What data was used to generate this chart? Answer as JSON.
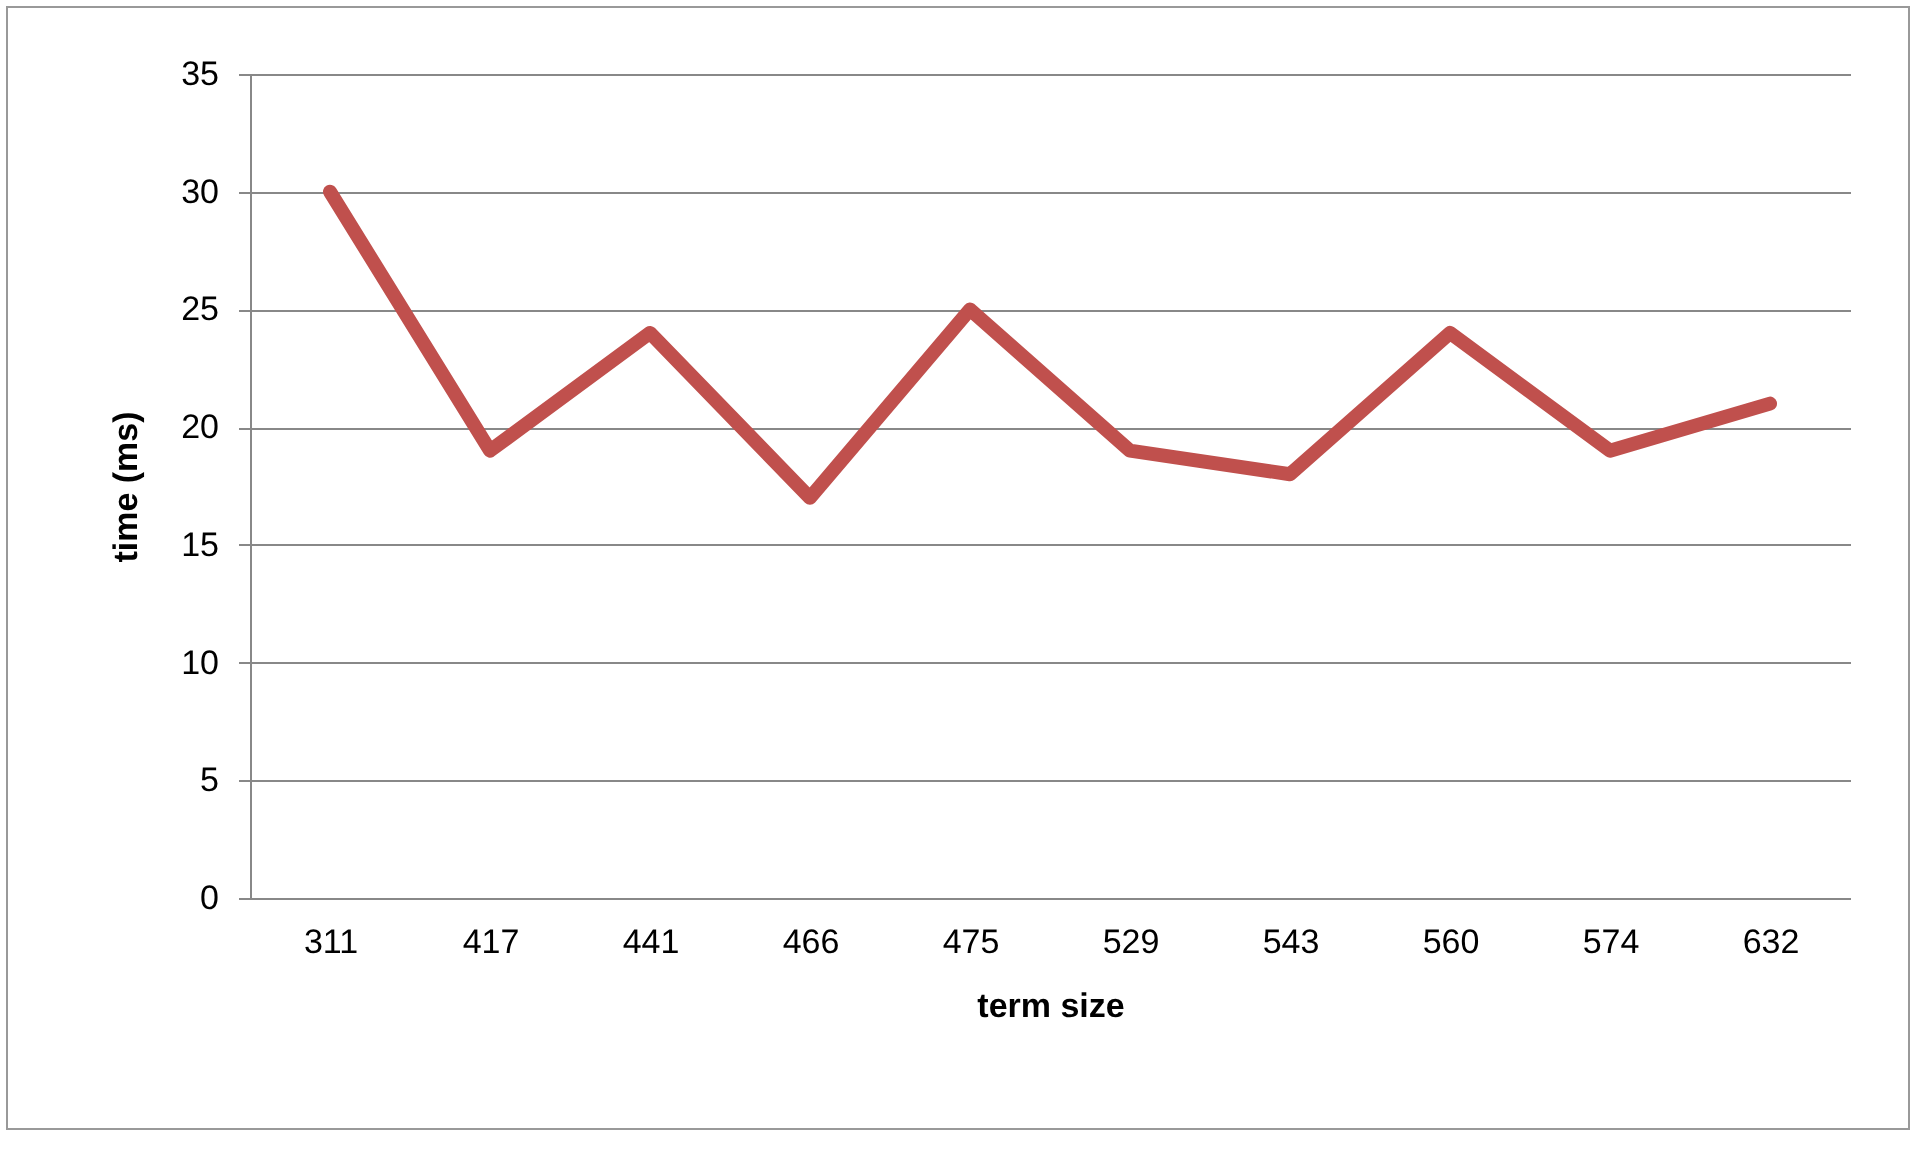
{
  "chart_data": {
    "type": "line",
    "xlabel": "term size",
    "ylabel": "time (ms)",
    "categories": [
      "311",
      "417",
      "441",
      "466",
      "475",
      "529",
      "543",
      "560",
      "574",
      "632"
    ],
    "series": [
      {
        "color": "#c0504d",
        "values": [
          30,
          19,
          24,
          17,
          25,
          19,
          18,
          24,
          19,
          21
        ]
      }
    ],
    "ylim": [
      0,
      35
    ],
    "yticks": [
      0,
      5,
      10,
      15,
      20,
      25,
      30,
      35
    ],
    "grid": "y",
    "marker": "none",
    "line_style": "solid"
  }
}
